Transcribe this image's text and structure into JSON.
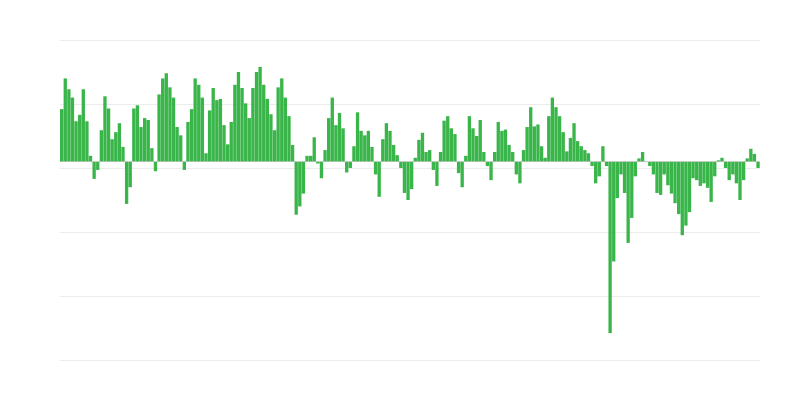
{
  "chart_data": {
    "type": "bar",
    "title": "",
    "xlabel": "",
    "ylabel": "",
    "ylim": [
      -3.1,
      1.9
    ],
    "gridlines": [
      1.9,
      0.9,
      -0.1,
      -1.1,
      -2.1,
      -3.1
    ],
    "grid": true,
    "bar_color": "#39b54a",
    "grid_color": "#ececec",
    "baseline_color": "#bbbbbb",
    "values": [
      0.82,
      1.3,
      1.13,
      1.0,
      0.63,
      0.73,
      1.13,
      0.63,
      0.09,
      -0.27,
      -0.13,
      0.49,
      1.02,
      0.83,
      0.35,
      0.46,
      0.6,
      0.23,
      -0.66,
      -0.4,
      0.83,
      0.88,
      0.54,
      0.68,
      0.65,
      0.21,
      -0.15,
      1.05,
      1.3,
      1.38,
      1.16,
      1.0,
      0.54,
      0.41,
      -0.13,
      0.62,
      0.82,
      1.3,
      1.2,
      1.0,
      0.13,
      0.8,
      1.15,
      0.96,
      0.98,
      0.57,
      0.27,
      0.62,
      1.2,
      1.4,
      1.15,
      0.91,
      0.68,
      1.15,
      1.4,
      1.48,
      1.2,
      0.98,
      0.74,
      0.49,
      1.16,
      1.3,
      1.0,
      0.71,
      0.26,
      -0.83,
      -0.7,
      -0.5,
      0.09,
      0.09,
      0.38,
      -0.03,
      -0.26,
      0.18,
      0.68,
      1.0,
      0.57,
      0.76,
      0.52,
      -0.17,
      -0.1,
      0.24,
      0.77,
      0.48,
      0.41,
      0.48,
      0.23,
      -0.2,
      -0.55,
      0.35,
      0.6,
      0.48,
      0.26,
      0.1,
      -0.1,
      -0.49,
      -0.6,
      -0.43,
      0.06,
      0.34,
      0.45,
      0.15,
      0.18,
      -0.13,
      -0.38,
      0.15,
      0.64,
      0.71,
      0.52,
      0.43,
      -0.18,
      -0.4,
      0.09,
      0.71,
      0.52,
      0.4,
      0.65,
      0.15,
      -0.07,
      -0.29,
      0.15,
      0.62,
      0.48,
      0.5,
      0.26,
      0.15,
      -0.2,
      -0.34,
      0.18,
      0.54,
      0.85,
      0.55,
      0.58,
      0.24,
      0.06,
      0.71,
      1.0,
      0.85,
      0.71,
      0.46,
      0.16,
      0.37,
      0.6,
      0.32,
      0.24,
      0.18,
      0.13,
      -0.07,
      -0.34,
      -0.23,
      0.24,
      -0.07,
      -2.68,
      -1.56,
      -0.57,
      -0.2,
      -0.49,
      -1.27,
      -0.88,
      -0.23,
      0.05,
      0.15,
      0.0,
      -0.07,
      -0.2,
      -0.49,
      -0.52,
      -0.2,
      -0.37,
      -0.5,
      -0.65,
      -0.82,
      -1.15,
      -1.0,
      -0.79,
      -0.26,
      -0.29,
      -0.38,
      -0.34,
      -0.41,
      -0.63,
      -0.23,
      0.02,
      0.06,
      -0.1,
      -0.29,
      -0.2,
      -0.34,
      -0.6,
      -0.29,
      0.05,
      0.2,
      0.12,
      -0.1
    ]
  }
}
